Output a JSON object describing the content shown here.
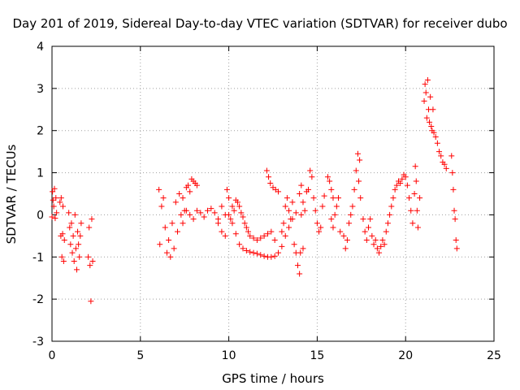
{
  "chart_data": {
    "type": "scatter",
    "title": "Day 201 of 2019, Sidereal Day-to-day VTEC variation (SDTVAR) for receiver dubo",
    "xlabel": "GPS time / hours",
    "ylabel": "SDTVAR / TECUs",
    "xlim": [
      0,
      25
    ],
    "ylim": [
      -3,
      4
    ],
    "xticks": [
      "0",
      "5",
      "10",
      "15",
      "20",
      "25"
    ],
    "yticks": [
      "-3",
      "-2",
      "-1",
      "0",
      "1",
      "2",
      "3",
      "4"
    ],
    "grid": true,
    "marker": "+",
    "color": "#ff0000",
    "series": [
      {
        "name": "SDTVAR",
        "points": [
          [
            0.0,
            -0.05
          ],
          [
            0.03,
            0.55
          ],
          [
            0.06,
            0.35
          ],
          [
            0.1,
            0.2
          ],
          [
            0.14,
            0.62
          ],
          [
            0.18,
            -0.08
          ],
          [
            0.22,
            0.4
          ],
          [
            0.26,
            0.05
          ],
          [
            0.45,
            0.3
          ],
          [
            0.5,
            -0.5
          ],
          [
            0.52,
            0.4
          ],
          [
            0.56,
            -1.0
          ],
          [
            0.6,
            -0.45
          ],
          [
            0.62,
            0.2
          ],
          [
            0.66,
            -1.1
          ],
          [
            0.7,
            -0.6
          ],
          [
            0.95,
            0.05
          ],
          [
            1.0,
            -0.3
          ],
          [
            1.05,
            -0.7
          ],
          [
            1.1,
            -0.2
          ],
          [
            1.15,
            -0.9
          ],
          [
            1.2,
            -0.5
          ],
          [
            1.25,
            -1.1
          ],
          [
            1.3,
            0.0
          ],
          [
            1.35,
            -0.8
          ],
          [
            1.4,
            -1.3
          ],
          [
            1.45,
            -0.4
          ],
          [
            1.5,
            -0.7
          ],
          [
            1.55,
            -1.0
          ],
          [
            1.6,
            -0.5
          ],
          [
            1.65,
            -0.2
          ],
          [
            2.05,
            -1.0
          ],
          [
            2.1,
            -0.3
          ],
          [
            2.15,
            -1.2
          ],
          [
            2.2,
            -2.05
          ],
          [
            2.25,
            -0.1
          ],
          [
            2.3,
            -1.1
          ],
          [
            6.05,
            0.6
          ],
          [
            6.1,
            -0.7
          ],
          [
            6.2,
            0.2
          ],
          [
            6.3,
            0.4
          ],
          [
            6.4,
            -0.3
          ],
          [
            6.5,
            -0.9
          ],
          [
            6.6,
            -0.6
          ],
          [
            6.7,
            -1.0
          ],
          [
            6.8,
            -0.2
          ],
          [
            6.9,
            -0.8
          ],
          [
            7.0,
            0.3
          ],
          [
            7.1,
            -0.4
          ],
          [
            7.2,
            0.5
          ],
          [
            7.3,
            0.0
          ],
          [
            7.4,
            0.4
          ],
          [
            7.5,
            0.1
          ],
          [
            7.6,
            0.65
          ],
          [
            7.7,
            0.7
          ],
          [
            7.8,
            0.55
          ],
          [
            7.9,
            0.85
          ],
          [
            8.0,
            0.8
          ],
          [
            8.1,
            0.75
          ],
          [
            8.2,
            0.7
          ],
          [
            7.4,
            -0.2
          ],
          [
            7.6,
            0.1
          ],
          [
            7.8,
            0.0
          ],
          [
            8.0,
            -0.1
          ],
          [
            8.2,
            0.1
          ],
          [
            8.4,
            0.05
          ],
          [
            8.6,
            -0.05
          ],
          [
            8.8,
            0.1
          ],
          [
            9.0,
            0.15
          ],
          [
            9.2,
            0.05
          ],
          [
            9.4,
            -0.1
          ],
          [
            9.6,
            0.2
          ],
          [
            9.8,
            0.0
          ],
          [
            9.9,
            0.6
          ],
          [
            10.0,
            0.4
          ],
          [
            10.1,
            -0.1
          ],
          [
            10.2,
            0.2
          ],
          [
            10.3,
            0.1
          ],
          [
            10.4,
            0.35
          ],
          [
            10.5,
            0.3
          ],
          [
            10.6,
            0.2
          ],
          [
            10.7,
            0.05
          ],
          [
            10.8,
            -0.05
          ],
          [
            10.9,
            -0.2
          ],
          [
            11.0,
            -0.3
          ],
          [
            11.1,
            -0.4
          ],
          [
            11.2,
            -0.5
          ],
          [
            11.4,
            -0.55
          ],
          [
            11.6,
            -0.6
          ],
          [
            11.8,
            -0.55
          ],
          [
            12.0,
            -0.5
          ],
          [
            12.2,
            -0.45
          ],
          [
            12.4,
            -0.4
          ],
          [
            12.6,
            -0.6
          ],
          [
            9.4,
            -0.2
          ],
          [
            9.6,
            -0.4
          ],
          [
            9.8,
            -0.5
          ],
          [
            10.0,
            0.0
          ],
          [
            10.2,
            -0.2
          ],
          [
            10.4,
            -0.45
          ],
          [
            10.6,
            -0.7
          ],
          [
            10.8,
            -0.8
          ],
          [
            11.0,
            -0.85
          ],
          [
            11.2,
            -0.88
          ],
          [
            11.4,
            -0.9
          ],
          [
            11.6,
            -0.92
          ],
          [
            11.8,
            -0.95
          ],
          [
            12.0,
            -0.98
          ],
          [
            12.2,
            -1.0
          ],
          [
            12.4,
            -1.0
          ],
          [
            12.6,
            -0.98
          ],
          [
            12.8,
            -0.9
          ],
          [
            13.0,
            -0.75
          ],
          [
            13.2,
            -0.5
          ],
          [
            13.4,
            -0.3
          ],
          [
            13.6,
            -0.1
          ],
          [
            13.8,
            0.05
          ],
          [
            12.15,
            1.05
          ],
          [
            12.25,
            0.9
          ],
          [
            12.35,
            0.75
          ],
          [
            12.5,
            0.65
          ],
          [
            12.65,
            0.6
          ],
          [
            12.8,
            0.55
          ],
          [
            13.0,
            -0.4
          ],
          [
            13.1,
            -0.2
          ],
          [
            13.2,
            0.2
          ],
          [
            13.3,
            0.4
          ],
          [
            13.4,
            0.1
          ],
          [
            13.5,
            -0.1
          ],
          [
            13.6,
            0.3
          ],
          [
            13.7,
            -0.7
          ],
          [
            13.8,
            -0.9
          ],
          [
            13.9,
            -1.2
          ],
          [
            14.0,
            -1.4
          ],
          [
            14.05,
            -0.9
          ],
          [
            14.1,
            0.0
          ],
          [
            14.2,
            -0.8
          ],
          [
            14.0,
            0.5
          ],
          [
            14.1,
            0.7
          ],
          [
            14.2,
            0.3
          ],
          [
            14.3,
            0.1
          ],
          [
            14.4,
            0.55
          ],
          [
            14.5,
            0.6
          ],
          [
            14.6,
            1.05
          ],
          [
            14.7,
            0.9
          ],
          [
            14.8,
            0.4
          ],
          [
            14.9,
            0.1
          ],
          [
            15.0,
            -0.2
          ],
          [
            15.1,
            -0.4
          ],
          [
            15.2,
            -0.3
          ],
          [
            15.3,
            0.2
          ],
          [
            15.4,
            0.45
          ],
          [
            15.6,
            0.9
          ],
          [
            15.7,
            0.8
          ],
          [
            15.8,
            0.6
          ],
          [
            15.9,
            0.4
          ],
          [
            15.8,
            -0.1
          ],
          [
            15.9,
            -0.3
          ],
          [
            16.0,
            0.0
          ],
          [
            16.1,
            0.2
          ],
          [
            16.2,
            0.4
          ],
          [
            16.3,
            -0.4
          ],
          [
            16.5,
            -0.5
          ],
          [
            16.6,
            -0.8
          ],
          [
            16.7,
            -0.6
          ],
          [
            16.8,
            -0.2
          ],
          [
            16.9,
            0.0
          ],
          [
            17.0,
            0.2
          ],
          [
            17.1,
            0.6
          ],
          [
            17.2,
            1.05
          ],
          [
            17.3,
            1.45
          ],
          [
            17.4,
            1.3
          ],
          [
            17.35,
            0.8
          ],
          [
            17.45,
            0.4
          ],
          [
            17.6,
            -0.1
          ],
          [
            17.7,
            -0.4
          ],
          [
            17.8,
            -0.6
          ],
          [
            17.9,
            -0.3
          ],
          [
            18.0,
            -0.1
          ],
          [
            18.1,
            -0.5
          ],
          [
            18.2,
            -0.7
          ],
          [
            18.3,
            -0.6
          ],
          [
            18.4,
            -0.8
          ],
          [
            18.5,
            -0.9
          ],
          [
            18.6,
            -0.75
          ],
          [
            18.7,
            -0.6
          ],
          [
            18.8,
            -0.7
          ],
          [
            18.9,
            -0.4
          ],
          [
            19.0,
            -0.2
          ],
          [
            19.1,
            0.0
          ],
          [
            19.2,
            0.2
          ],
          [
            19.3,
            0.4
          ],
          [
            19.4,
            0.6
          ],
          [
            19.5,
            0.7
          ],
          [
            19.6,
            0.8
          ],
          [
            19.7,
            0.75
          ],
          [
            19.8,
            0.85
          ],
          [
            19.9,
            0.95
          ],
          [
            20.0,
            0.9
          ],
          [
            20.1,
            0.7
          ],
          [
            20.2,
            0.4
          ],
          [
            20.3,
            0.1
          ],
          [
            20.4,
            -0.2
          ],
          [
            20.5,
            0.5
          ],
          [
            20.55,
            1.15
          ],
          [
            20.6,
            0.8
          ],
          [
            20.65,
            0.1
          ],
          [
            20.7,
            -0.3
          ],
          [
            20.8,
            0.4
          ],
          [
            21.05,
            2.7
          ],
          [
            21.1,
            3.1
          ],
          [
            21.15,
            2.9
          ],
          [
            21.2,
            2.3
          ],
          [
            21.25,
            3.2
          ],
          [
            21.3,
            2.5
          ],
          [
            21.35,
            2.2
          ],
          [
            21.4,
            2.8
          ],
          [
            21.45,
            2.1
          ],
          [
            21.5,
            2.0
          ],
          [
            21.55,
            2.5
          ],
          [
            21.6,
            1.95
          ],
          [
            21.7,
            1.85
          ],
          [
            21.8,
            1.7
          ],
          [
            21.9,
            1.5
          ],
          [
            22.0,
            1.4
          ],
          [
            22.1,
            1.25
          ],
          [
            22.2,
            1.2
          ],
          [
            22.3,
            1.1
          ],
          [
            22.6,
            1.4
          ],
          [
            22.65,
            1.0
          ],
          [
            22.7,
            0.6
          ],
          [
            22.75,
            0.1
          ],
          [
            22.8,
            -0.1
          ],
          [
            22.85,
            -0.6
          ],
          [
            22.9,
            -0.8
          ]
        ]
      }
    ]
  }
}
